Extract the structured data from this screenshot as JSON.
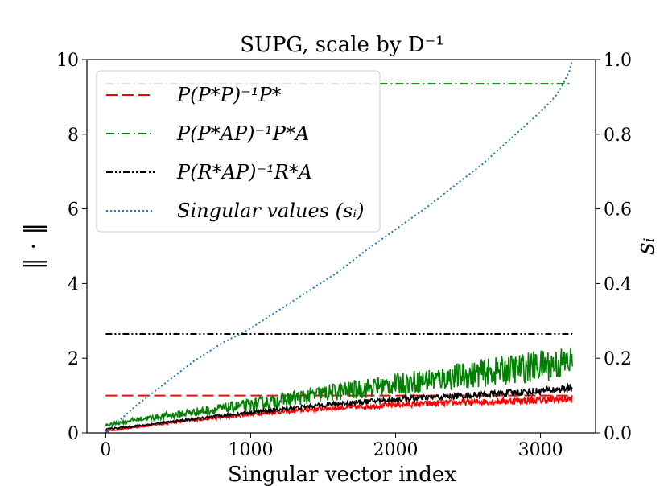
{
  "chart_data": {
    "type": "line",
    "title": "SUPG, scale by D⁻¹",
    "xlabel": "Singular vector index",
    "ylabel": "‖ · ‖",
    "y2label": "sᵢ",
    "xlim": [
      -130,
      3380
    ],
    "ylim": [
      0,
      10
    ],
    "y2lim": [
      0,
      1.0
    ],
    "xticks": [
      "0",
      "1000",
      "2000",
      "3000"
    ],
    "yticks": [
      "0",
      "2",
      "4",
      "6",
      "8",
      "10"
    ],
    "y2ticks": [
      "0.0",
      "0.2",
      "0.4",
      "0.6",
      "0.8",
      "1.0"
    ],
    "grid": false,
    "legend_position": "top-left",
    "colors": {
      "red": "#ff0000",
      "green": "#008000",
      "black": "#000000",
      "blue": "#1f77b4"
    },
    "series": [
      {
        "name": "P(P*P)⁻¹P*",
        "style": "dashed",
        "color": "#ff0000",
        "axis": "left",
        "constant": {
          "x": [
            0,
            3220
          ],
          "y": [
            1.0,
            1.0
          ]
        },
        "curve": {
          "x": [
            0,
            200,
            500,
            1000,
            1500,
            2000,
            2500,
            3000,
            3220
          ],
          "y": [
            0.05,
            0.15,
            0.3,
            0.5,
            0.65,
            0.75,
            0.82,
            0.88,
            0.9
          ]
        }
      },
      {
        "name": "P(P*AP)⁻¹P*A",
        "style": "dashdot",
        "color": "#008000",
        "axis": "left",
        "constant": {
          "x": [
            0,
            3220
          ],
          "y": [
            9.35,
            9.35
          ]
        },
        "curve": {
          "x": [
            0,
            200,
            500,
            1000,
            1500,
            2000,
            2500,
            3000,
            3220
          ],
          "y": [
            0.2,
            0.35,
            0.5,
            0.75,
            1.05,
            1.3,
            1.55,
            1.8,
            1.9
          ]
        }
      },
      {
        "name": "P(R*AP)⁻¹R*A",
        "style": "dashdotdot",
        "color": "#000000",
        "axis": "left",
        "constant": {
          "x": [
            0,
            3220
          ],
          "y": [
            2.65,
            2.65
          ]
        },
        "curve": {
          "x": [
            0,
            200,
            500,
            1000,
            1500,
            2000,
            2500,
            3000,
            3220
          ],
          "y": [
            0.1,
            0.18,
            0.32,
            0.55,
            0.75,
            0.9,
            1.0,
            1.12,
            1.2
          ]
        }
      },
      {
        "name": "Singular values (sᵢ)",
        "style": "dotted",
        "color": "#1f77b4",
        "axis": "right",
        "curve": {
          "x": [
            0,
            200,
            400,
            600,
            800,
            1000,
            1200,
            1400,
            1600,
            1800,
            2000,
            2200,
            2400,
            2600,
            2800,
            3000,
            3100,
            3150,
            3200,
            3220
          ],
          "y": [
            0.0,
            0.07,
            0.13,
            0.19,
            0.24,
            0.28,
            0.33,
            0.38,
            0.43,
            0.49,
            0.545,
            0.6,
            0.66,
            0.72,
            0.79,
            0.86,
            0.9,
            0.93,
            0.97,
            1.0
          ]
        }
      }
    ]
  }
}
